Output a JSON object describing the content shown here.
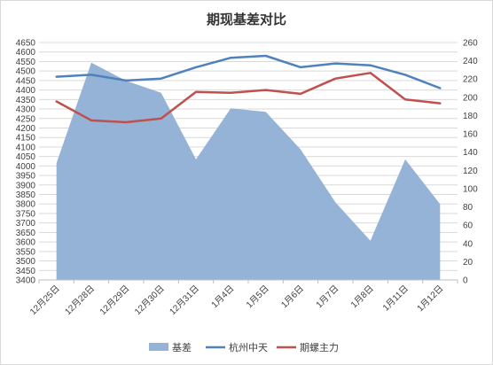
{
  "chart_data": {
    "type": "combo",
    "title": "期现基差对比",
    "categories": [
      "12月25日",
      "12月28日",
      "12月29日",
      "12月30日",
      "12月31日",
      "1月4日",
      "1月5日",
      "1月6日",
      "1月7日",
      "1月8日",
      "1月11日",
      "1月12日"
    ],
    "y_left": {
      "min": 3400,
      "max": 4650,
      "step": 50
    },
    "y_right": {
      "min": 0,
      "max": 260,
      "step": 20
    },
    "series": [
      {
        "name": "基差",
        "type": "area",
        "axis": "right",
        "color": "#95b3d7",
        "values": [
          128,
          238,
          218,
          205,
          132,
          188,
          184,
          143,
          85,
          43,
          132,
          83
        ]
      },
      {
        "name": "杭州中天",
        "type": "line",
        "axis": "left",
        "color": "#4f81bd",
        "values": [
          4470,
          4480,
          4450,
          4460,
          4520,
          4570,
          4580,
          4520,
          4540,
          4530,
          4480,
          4410
        ]
      },
      {
        "name": "期螺主力",
        "type": "line",
        "axis": "left",
        "color": "#c0504d",
        "values": [
          4340,
          4240,
          4230,
          4250,
          4390,
          4385,
          4400,
          4380,
          4460,
          4490,
          4350,
          4330
        ]
      }
    ],
    "grid": "horizontal",
    "legend_position": "bottom"
  }
}
